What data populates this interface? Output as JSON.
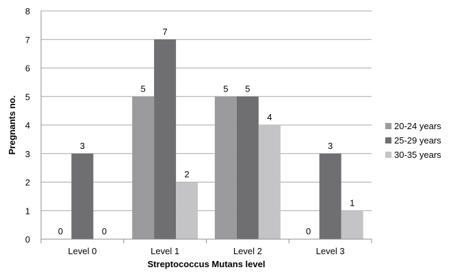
{
  "chart_data": {
    "type": "bar",
    "title": "",
    "xlabel": "Streptococcus Mutans level",
    "ylabel": "Pregnants no.",
    "ylim": [
      0,
      8
    ],
    "yticks": [
      "0",
      "1",
      "2",
      "3",
      "4",
      "5",
      "6",
      "7",
      "8"
    ],
    "grid": true,
    "legend_position": "right",
    "categories": [
      "Level 0",
      "Level 1",
      "Level 2",
      "Level 3"
    ],
    "series": [
      {
        "name": "20-24 years",
        "color": "#9b9b9d",
        "values": [
          0,
          5,
          5,
          0
        ]
      },
      {
        "name": "25-29 years",
        "color": "#6f6f71",
        "values": [
          3,
          7,
          5,
          3
        ]
      },
      {
        "name": "30-35 years",
        "color": "#c4c4c6",
        "values": [
          0,
          2,
          4,
          1
        ]
      }
    ],
    "data_labels": true
  }
}
